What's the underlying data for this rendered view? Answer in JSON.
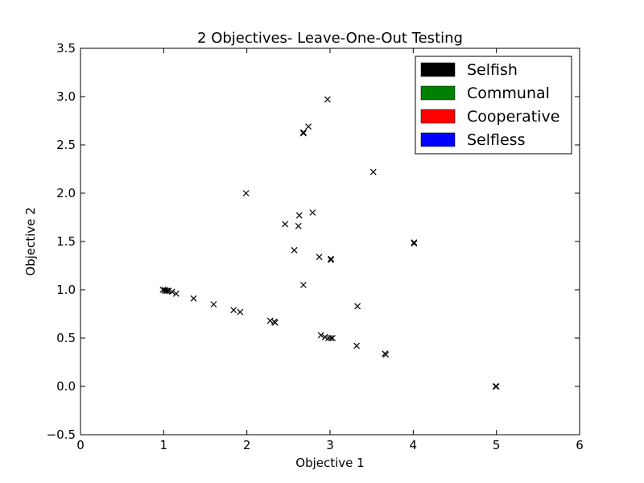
{
  "chart_data": {
    "type": "scatter",
    "title": "2 Objectives- Leave-One-Out Testing",
    "xlabel": "Objective 1",
    "ylabel": "Objective 2",
    "xlim": [
      0,
      6
    ],
    "ylim": [
      -0.5,
      3.5
    ],
    "xticks": [
      0,
      1,
      2,
      3,
      4,
      5,
      6
    ],
    "xtick_labels": [
      "0",
      "1",
      "2",
      "3",
      "4",
      "5",
      "6"
    ],
    "yticks": [
      -0.5,
      0.0,
      0.5,
      1.0,
      1.5,
      2.0,
      2.5,
      3.0,
      3.5
    ],
    "ytick_labels": [
      "−0.5",
      "0.0",
      "0.5",
      "1.0",
      "1.5",
      "2.0",
      "2.5",
      "3.0",
      "3.5"
    ],
    "grid": false,
    "legend_position": "top-right",
    "legend": [
      {
        "label": "Selfish",
        "color": "#000000"
      },
      {
        "label": "Communal",
        "color": "#008000"
      },
      {
        "label": "Cooperative",
        "color": "#ff0000"
      },
      {
        "label": "Selfless",
        "color": "#0000ff"
      }
    ],
    "marker": "x",
    "marker_color": "#000000",
    "points": [
      [
        2.97,
        2.97
      ],
      [
        2.74,
        2.69
      ],
      [
        2.68,
        2.63
      ],
      [
        2.68,
        2.62
      ],
      [
        3.52,
        2.22
      ],
      [
        1.99,
        2.0
      ],
      [
        2.79,
        1.8
      ],
      [
        2.63,
        1.77
      ],
      [
        2.46,
        1.68
      ],
      [
        2.62,
        1.66
      ],
      [
        4.01,
        1.48
      ],
      [
        4.01,
        1.49
      ],
      [
        2.57,
        1.41
      ],
      [
        2.87,
        1.34
      ],
      [
        3.01,
        1.32
      ],
      [
        3.01,
        1.31
      ],
      [
        2.68,
        1.05
      ],
      [
        0.99,
        1.0
      ],
      [
        1.01,
        1.0
      ],
      [
        1.02,
        0.99
      ],
      [
        1.04,
        0.99
      ],
      [
        1.06,
        0.99
      ],
      [
        1.1,
        0.98
      ],
      [
        1.15,
        0.96
      ],
      [
        1.36,
        0.91
      ],
      [
        1.6,
        0.85
      ],
      [
        1.84,
        0.79
      ],
      [
        1.92,
        0.77
      ],
      [
        3.33,
        0.83
      ],
      [
        2.28,
        0.68
      ],
      [
        2.33,
        0.67
      ],
      [
        2.34,
        0.66
      ],
      [
        2.89,
        0.53
      ],
      [
        2.94,
        0.51
      ],
      [
        2.98,
        0.5
      ],
      [
        3.01,
        0.5
      ],
      [
        3.03,
        0.5
      ],
      [
        3.32,
        0.42
      ],
      [
        3.66,
        0.34
      ],
      [
        3.67,
        0.33
      ],
      [
        4.99,
        0.0
      ],
      [
        5.0,
        0.0
      ]
    ]
  }
}
